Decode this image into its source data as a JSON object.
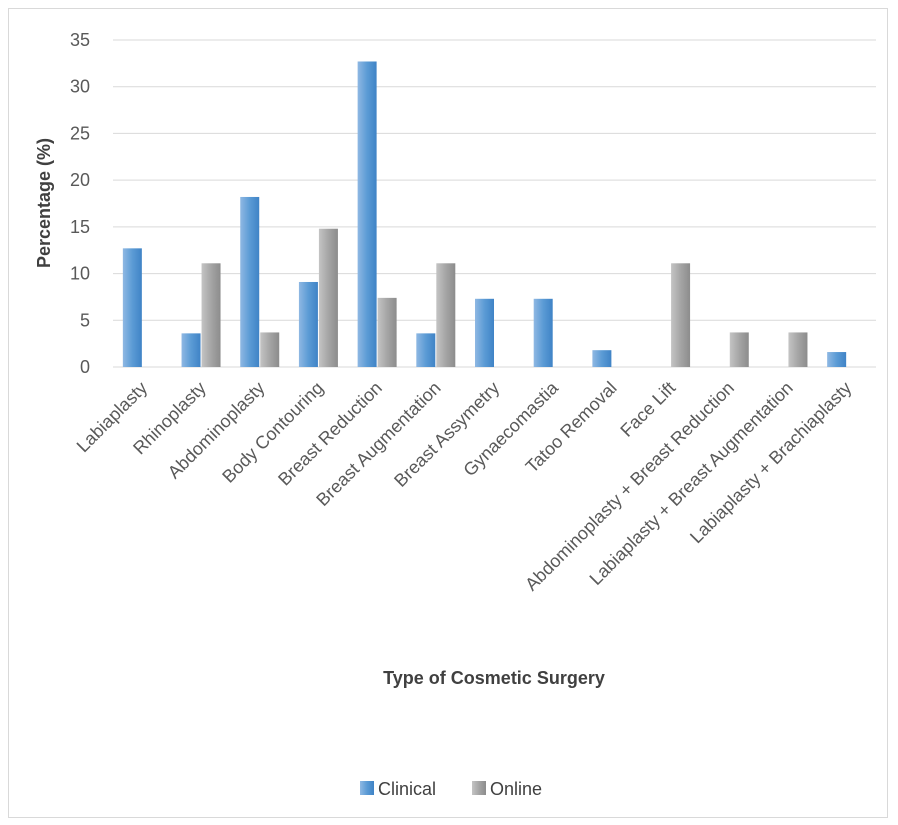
{
  "chart_data": {
    "type": "bar",
    "categories": [
      "Labiaplasty",
      "Rhinoplasty",
      "Abdominoplasty",
      "Body Contouring",
      "Breast Reduction",
      "Breast Augmentation",
      "Breast Assymetry",
      "Gynaecomastia",
      "Tatoo Removal",
      "Face Lift",
      "Abdominoplasty + Breast Reduction",
      "Labiaplasty + Breast Augmentation",
      "Labiaplasty + Brachiaplasty"
    ],
    "series": [
      {
        "name": "Clinical",
        "color": "#5b9bd5",
        "values": [
          12.7,
          3.6,
          18.2,
          9.1,
          32.7,
          3.6,
          7.3,
          7.3,
          1.8,
          0,
          0,
          0,
          1.6
        ]
      },
      {
        "name": "Online",
        "color": "#a5a5a5",
        "values": [
          0,
          11.1,
          3.7,
          14.8,
          7.4,
          11.1,
          0,
          0,
          0,
          11.1,
          3.7,
          3.7,
          0
        ]
      }
    ],
    "xlabel": "Type of Cosmetic Surgery",
    "ylabel": "Percentage (%)",
    "ylim": [
      0,
      35
    ],
    "yticks": [
      "0",
      "5",
      "10",
      "15",
      "20",
      "25",
      "30",
      "35"
    ],
    "grid": true,
    "legend_position": "bottom"
  }
}
